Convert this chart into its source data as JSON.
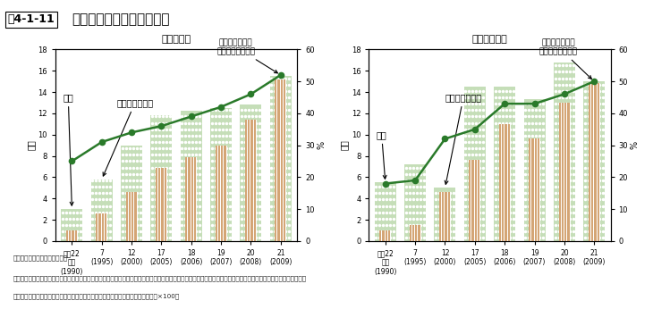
{
  "title_box": "围4-1-11",
  "title_main": "野生鳥獣の捕獲数等の推移",
  "subtitle_left": "（シ　カ）",
  "subtitle_right": "（イノシシ）",
  "x_labels_line1": [
    "平成22",
    "7",
    "12",
    "17",
    "18",
    "19",
    "20",
    "21"
  ],
  "x_labels_line2": [
    "年度",
    "(1995)",
    "(2000)",
    "(2005)",
    "(2006)",
    "(2007)",
    "(2008)",
    "(2009)"
  ],
  "x_labels_line3": [
    "(1990)",
    "",
    "",
    "",
    "",
    "",
    "",
    ""
  ],
  "x_positions": [
    0,
    1,
    2,
    3,
    4,
    5,
    6,
    7
  ],
  "shika_green_bars": [
    3.0,
    5.8,
    9.0,
    11.8,
    12.2,
    12.5,
    12.8,
    15.5
  ],
  "shika_orange_bars": [
    1.0,
    2.6,
    4.6,
    6.9,
    7.9,
    9.0,
    11.4,
    15.2
  ],
  "shika_line": [
    25,
    31,
    34,
    36,
    39,
    42,
    46,
    52
  ],
  "inoshishi_green_bars": [
    5.5,
    7.2,
    5.0,
    14.5,
    14.5,
    13.3,
    16.8,
    15.0
  ],
  "inoshishi_orange_bars": [
    1.0,
    1.5,
    4.6,
    7.6,
    11.0,
    9.6,
    13.0,
    14.8
  ],
  "inoshishi_line": [
    18,
    19,
    32,
    35,
    43,
    43,
    46,
    50
  ],
  "ylim_left": [
    0,
    18
  ],
  "ylim_right": [
    0,
    60
  ],
  "ylabel_left": "万頭",
  "ylabel_right": "%",
  "green_bar_color": "#c5deb8",
  "orange_bar_color": "#d4a575",
  "line_color": "#2a7a2a",
  "bg_color": "#ffffff",
  "header_bg": "#f0e8c0",
  "note1": "資料：環境省「鳥獣関係統計」",
  "note2": "注：１）有害鳥獣捕獲等とは、鳥獣による生活環境、農林水産業又は生態系にかかる被害防止のための捕獲及び特定鳥獣保護管理計画に基づく数の調整のための捕獲。",
  "note3": "　　２）有害鳥獣捕獲等の割合＝有害鳥獣捕獲等数／（狩猎数＋有害鳥獣捕獲等数×100）"
}
